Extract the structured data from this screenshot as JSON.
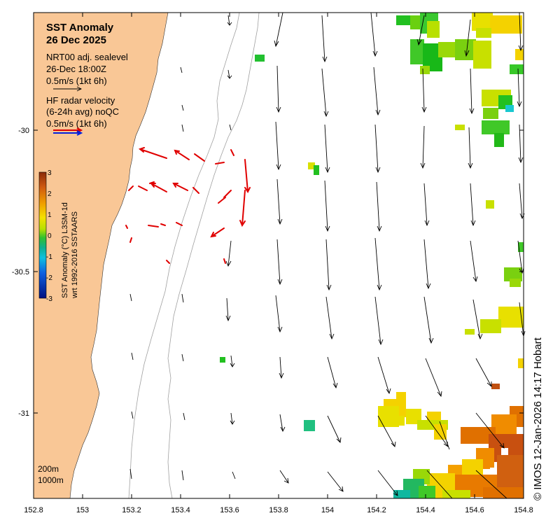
{
  "title": {
    "line1": "SST Anomaly",
    "line2": "26 Dec 2025"
  },
  "legend": {
    "altimetry": {
      "line1": "NRT00 adj. sealevel",
      "line2": "26-Dec 18:00Z",
      "scale": "0.5m/s (1kt 6h)"
    },
    "radar": {
      "line1": "HF radar velocity",
      "line2": "(6-24h avg) noQC",
      "scale": "0.5m/s (1kt 6h)"
    },
    "isobaths": [
      "200m",
      "1000m"
    ]
  },
  "colorbar": {
    "label_line1": "SST Anomaly (°C) L3SM-1d",
    "label_line2": "wrt 1992-2016 SSTAARS",
    "ticks": [
      "3",
      "2",
      "1",
      "0",
      "-1",
      "-2",
      "-3"
    ],
    "range": [
      -3,
      3
    ]
  },
  "axes": {
    "x_ticks": [
      "152.8",
      "153",
      "153.2",
      "153.4",
      "153.6",
      "153.8",
      "154",
      "154.2",
      "154.4",
      "154.6",
      "154.8"
    ],
    "y_ticks": [
      "-30",
      "-30.5",
      "-31"
    ],
    "xlim": [
      152.8,
      154.8
    ],
    "ylim": [
      -31.3,
      -29.55
    ]
  },
  "credit": "© IMOS 12-Jan-2026 14:17 Hobart",
  "colors": {
    "land": "#f9c796",
    "radar_arrow": "#e00000",
    "alt_arrow": "#000000",
    "isobath": "#a0a0a0"
  }
}
